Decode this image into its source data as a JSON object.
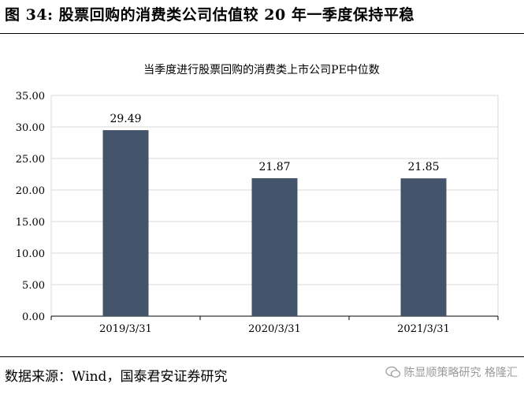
{
  "figure": {
    "title": "图 34:  股票回购的消费类公司估值较 20 年一季度保持平稳",
    "source": "数据来源：Wind，国泰君安证券研究",
    "watermark": "陈显顺策略研究  格隆汇"
  },
  "colors": {
    "bar": "#44546A",
    "grid": "#D9D9D9",
    "axis": "#000000"
  },
  "chart_data": {
    "type": "bar",
    "title": "当季度进行股票回购的消费类上市公司PE中位数",
    "xlabel": "",
    "ylabel": "",
    "categories": [
      "2019/3/31",
      "2020/3/31",
      "2021/3/31"
    ],
    "values": [
      29.49,
      21.87,
      21.85
    ],
    "data_labels": [
      "29.49",
      "21.87",
      "21.85"
    ],
    "ylim": [
      0,
      35
    ],
    "yticks": [
      "0.00",
      "5.00",
      "10.00",
      "15.00",
      "20.00",
      "25.00",
      "30.00",
      "35.00"
    ],
    "grid": true,
    "legend": "none"
  }
}
